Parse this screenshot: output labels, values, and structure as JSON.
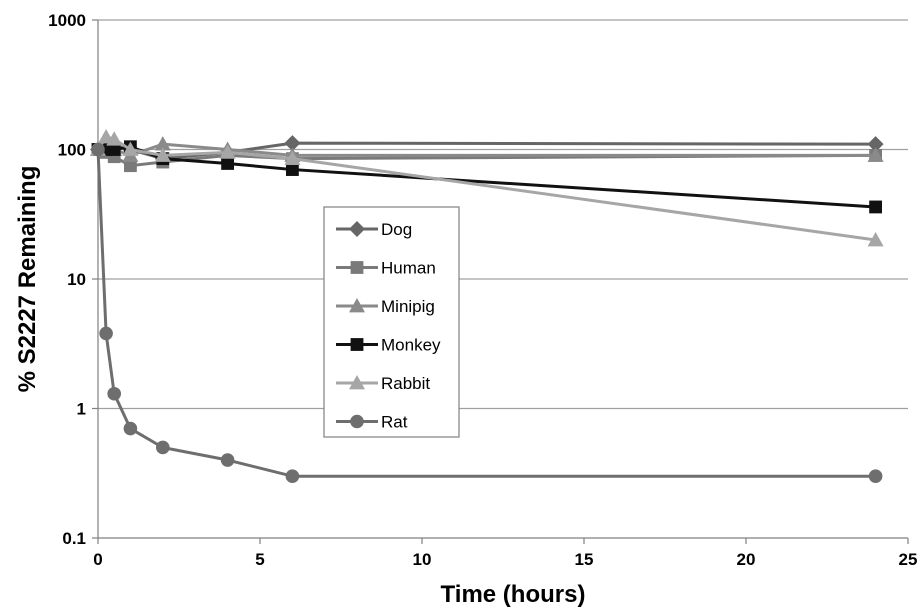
{
  "chart_data": {
    "type": "line",
    "title": "",
    "xlabel": "Time (hours)",
    "ylabel": "% S2227 Remaining",
    "xlim": [
      0,
      25
    ],
    "ylim": [
      0.1,
      1000
    ],
    "y_scale": "log",
    "x_ticks": [
      0,
      5,
      10,
      15,
      20,
      25
    ],
    "x_tick_labels": [
      "0",
      "5",
      "10",
      "15",
      "20",
      "25"
    ],
    "y_ticks": [
      0.1,
      1,
      10,
      100,
      1000
    ],
    "y_tick_labels": [
      "0.1",
      "1",
      "10",
      "100",
      "1000"
    ],
    "grid": "horizontal",
    "legend_position": "center",
    "series": [
      {
        "name": "Dog",
        "marker": "diamond",
        "color": "#666666",
        "x": [
          0,
          0.25,
          0.5,
          1,
          2,
          4,
          6,
          24
        ],
        "y": [
          100,
          110,
          105,
          100,
          85,
          95,
          112,
          110
        ]
      },
      {
        "name": "Human",
        "marker": "square",
        "color": "#7a7a7a",
        "x": [
          0,
          0.25,
          0.5,
          1,
          2,
          4,
          6,
          24
        ],
        "y": [
          100,
          95,
          88,
          75,
          80,
          90,
          85,
          90
        ]
      },
      {
        "name": "Minipig",
        "marker": "triangle",
        "color": "#8a8a8a",
        "x": [
          0,
          0.25,
          0.5,
          1,
          2,
          4,
          6,
          24
        ],
        "y": [
          100,
          115,
          100,
          90,
          110,
          100,
          90,
          90
        ]
      },
      {
        "name": "Monkey",
        "marker": "square",
        "color": "#111111",
        "x": [
          0,
          0.25,
          0.5,
          1,
          2,
          4,
          6,
          24
        ],
        "y": [
          100,
          100,
          100,
          105,
          85,
          78,
          70,
          36
        ]
      },
      {
        "name": "Rabbit",
        "marker": "triangle",
        "color": "#a6a6a6",
        "x": [
          0,
          0.25,
          0.5,
          1,
          2,
          4,
          6,
          24
        ],
        "y": [
          100,
          125,
          120,
          100,
          90,
          95,
          85,
          20
        ]
      },
      {
        "name": "Rat",
        "marker": "circle",
        "color": "#6e6e6e",
        "x": [
          0,
          0.25,
          0.5,
          1,
          2,
          4,
          6,
          24
        ],
        "y": [
          100,
          3.8,
          1.3,
          0.7,
          0.5,
          0.4,
          0.3,
          0.3
        ]
      }
    ]
  }
}
